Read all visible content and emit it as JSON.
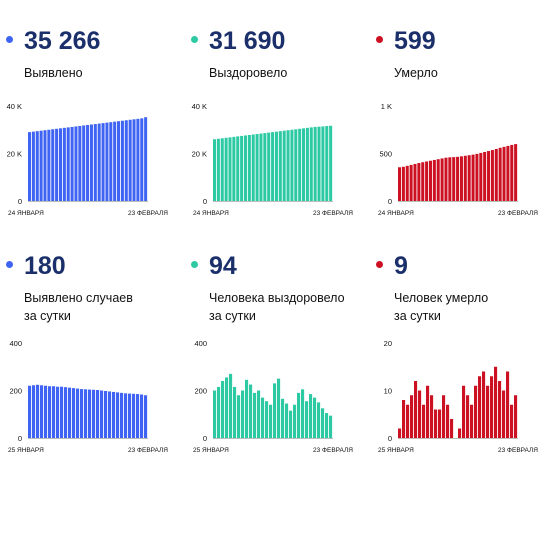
{
  "colors": {
    "blue": "#3f63f2",
    "teal": "#2cc9a3",
    "red": "#cc1123",
    "number": "#1b2f6b",
    "axis": "#bbbbbb"
  },
  "panels": [
    {
      "value": "35 266",
      "label_lines": [
        "Выявлено"
      ],
      "color": "blue",
      "chart_data": {
        "type": "bar",
        "x_start_label": "24 ЯНВАРЯ",
        "x_end_label": "23 ФЕВРАЛЯ",
        "y_ticks": [
          {
            "value": 0,
            "label": "0"
          },
          {
            "value": 20000,
            "label": "20 K"
          },
          {
            "value": 40000,
            "label": "40 K"
          }
        ],
        "ylim": [
          0,
          40000
        ],
        "values": [
          29000,
          29200,
          29400,
          29600,
          29800,
          30000,
          30200,
          30400,
          30600,
          30800,
          31000,
          31200,
          31400,
          31600,
          31800,
          32000,
          32200,
          32400,
          32600,
          32800,
          33000,
          33200,
          33400,
          33600,
          33800,
          34000,
          34200,
          34400,
          34600,
          34800,
          35266
        ]
      }
    },
    {
      "value": "31 690",
      "label_lines": [
        "Выздоровело"
      ],
      "color": "teal",
      "chart_data": {
        "type": "bar",
        "x_start_label": "24 ЯНВАРЯ",
        "x_end_label": "23 ФЕВРАЛЯ",
        "y_ticks": [
          {
            "value": 0,
            "label": "0"
          },
          {
            "value": 20000,
            "label": "20 K"
          },
          {
            "value": 40000,
            "label": "40 K"
          }
        ],
        "ylim": [
          0,
          40000
        ],
        "values": [
          26000,
          26200,
          26400,
          26600,
          26800,
          27000,
          27200,
          27400,
          27600,
          27800,
          28000,
          28200,
          28400,
          28600,
          28800,
          29000,
          29200,
          29400,
          29600,
          29800,
          30000,
          30200,
          30400,
          30600,
          30800,
          31000,
          31200,
          31300,
          31400,
          31550,
          31690
        ]
      }
    },
    {
      "value": "599",
      "label_lines": [
        "Умерло"
      ],
      "color": "red",
      "chart_data": {
        "type": "bar",
        "x_start_label": "24 ЯНВАРЯ",
        "x_end_label": "23 ФЕВРАЛЯ",
        "y_ticks": [
          {
            "value": 0,
            "label": "0"
          },
          {
            "value": 500,
            "label": "500"
          },
          {
            "value": 1000,
            "label": "1 K"
          }
        ],
        "ylim": [
          0,
          1000
        ],
        "values": [
          355,
          360,
          370,
          380,
          390,
          400,
          408,
          416,
          424,
          432,
          440,
          448,
          456,
          460,
          462,
          465,
          470,
          476,
          482,
          488,
          496,
          506,
          516,
          526,
          536,
          548,
          560,
          570,
          580,
          590,
          599
        ]
      }
    },
    {
      "value": "180",
      "label_lines": [
        "Выявлено случаев",
        "за сутки"
      ],
      "color": "blue",
      "chart_data": {
        "type": "bar",
        "x_start_label": "25 ЯНВАРЯ",
        "x_end_label": "23 ФЕВРАЛЯ",
        "y_ticks": [
          {
            "value": 0,
            "label": "0"
          },
          {
            "value": 200,
            "label": "200"
          },
          {
            "value": 400,
            "label": "400"
          }
        ],
        "ylim": [
          0,
          400
        ],
        "values": [
          220,
          222,
          224,
          222,
          220,
          218,
          218,
          216,
          216,
          214,
          212,
          210,
          208,
          206,
          205,
          204,
          203,
          202,
          200,
          198,
          196,
          194,
          192,
          190,
          188,
          187,
          186,
          185,
          183,
          180
        ]
      }
    },
    {
      "value": "94",
      "label_lines": [
        "Человека выздоровело",
        "за сутки"
      ],
      "color": "teal",
      "chart_data": {
        "type": "bar",
        "x_start_label": "25 ЯНВАРЯ",
        "x_end_label": "23 ФЕВРАЛЯ",
        "y_ticks": [
          {
            "value": 0,
            "label": "0"
          },
          {
            "value": 200,
            "label": "200"
          },
          {
            "value": 400,
            "label": "400"
          }
        ],
        "ylim": [
          0,
          400
        ],
        "values": [
          200,
          215,
          240,
          255,
          270,
          215,
          180,
          200,
          245,
          225,
          190,
          200,
          170,
          155,
          140,
          230,
          250,
          165,
          145,
          115,
          140,
          190,
          205,
          155,
          185,
          170,
          150,
          125,
          105,
          94
        ]
      }
    },
    {
      "value": "9",
      "label_lines": [
        "Человек умерло",
        "за сутки"
      ],
      "color": "red",
      "chart_data": {
        "type": "bar",
        "x_start_label": "25 ЯНВАРЯ",
        "x_end_label": "23 ФЕВРАЛЯ",
        "y_ticks": [
          {
            "value": 0,
            "label": "0"
          },
          {
            "value": 10,
            "label": "10"
          },
          {
            "value": 20,
            "label": "20"
          }
        ],
        "ylim": [
          0,
          20
        ],
        "values": [
          2,
          8,
          7,
          9,
          12,
          10,
          7,
          11,
          9,
          6,
          6,
          9,
          7,
          4,
          0,
          2,
          11,
          9,
          7,
          11,
          13,
          14,
          11,
          13,
          15,
          12,
          10,
          14,
          7,
          9
        ]
      }
    }
  ]
}
